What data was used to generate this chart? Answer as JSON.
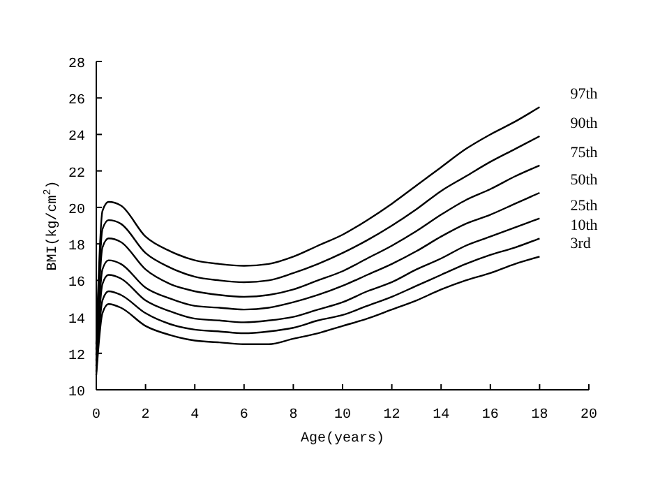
{
  "chart_data": {
    "type": "line",
    "xlabel": "Age(years)",
    "ylabel": "BMI(kg/cm$^{2}$)",
    "x": [
      0,
      0.25,
      0.5,
      1,
      2,
      3,
      4,
      5,
      6,
      7,
      8,
      9,
      10,
      11,
      12,
      13,
      14,
      15,
      16,
      17,
      18
    ],
    "xlim": [
      0,
      20
    ],
    "xticks": [
      0,
      2,
      4,
      6,
      8,
      10,
      12,
      14,
      16,
      18,
      20
    ],
    "ylim": [
      10,
      28
    ],
    "yticks": [
      10,
      12,
      14,
      16,
      18,
      20,
      22,
      24,
      26,
      28
    ],
    "grid": false,
    "marker": "none",
    "line_style": "solid",
    "series": [
      {
        "name": "97th",
        "color": "#000000",
        "values": [
          12.5,
          19.8,
          20.3,
          20.1,
          18.4,
          17.6,
          17.1,
          16.9,
          16.8,
          16.9,
          17.3,
          17.9,
          18.5,
          19.3,
          20.2,
          21.2,
          22.2,
          23.2,
          24.0,
          24.7,
          25.5
        ]
      },
      {
        "name": "90th",
        "color": "#000000",
        "values": [
          12.2,
          18.8,
          19.3,
          19.1,
          17.5,
          16.7,
          16.2,
          16.0,
          15.9,
          16.0,
          16.4,
          16.9,
          17.5,
          18.2,
          19.0,
          19.9,
          20.9,
          21.7,
          22.5,
          23.2,
          23.9
        ]
      },
      {
        "name": "75th",
        "color": "#000000",
        "values": [
          11.9,
          17.8,
          18.3,
          18.1,
          16.6,
          15.8,
          15.4,
          15.2,
          15.1,
          15.2,
          15.5,
          16.0,
          16.5,
          17.2,
          17.9,
          18.7,
          19.6,
          20.4,
          21.0,
          21.7,
          22.3
        ]
      },
      {
        "name": "50th",
        "color": "#000000",
        "values": [
          11.6,
          16.6,
          17.1,
          16.9,
          15.6,
          15.0,
          14.6,
          14.5,
          14.4,
          14.5,
          14.8,
          15.2,
          15.7,
          16.3,
          16.9,
          17.6,
          18.4,
          19.1,
          19.6,
          20.2,
          20.8
        ]
      },
      {
        "name": "25th",
        "color": "#000000",
        "values": [
          11.3,
          15.8,
          16.3,
          16.1,
          14.9,
          14.3,
          13.9,
          13.8,
          13.7,
          13.8,
          14.0,
          14.4,
          14.8,
          15.4,
          15.9,
          16.6,
          17.2,
          17.9,
          18.4,
          18.9,
          19.4
        ]
      },
      {
        "name": "10th",
        "color": "#000000",
        "values": [
          11.0,
          14.9,
          15.4,
          15.2,
          14.2,
          13.6,
          13.3,
          13.2,
          13.1,
          13.2,
          13.4,
          13.8,
          14.1,
          14.6,
          15.1,
          15.7,
          16.3,
          16.9,
          17.4,
          17.8,
          18.3
        ]
      },
      {
        "name": "3rd",
        "color": "#000000",
        "values": [
          10.8,
          14.2,
          14.7,
          14.5,
          13.5,
          13.0,
          12.7,
          12.6,
          12.5,
          12.5,
          12.8,
          13.1,
          13.5,
          13.9,
          14.4,
          14.9,
          15.5,
          16.0,
          16.4,
          16.9,
          17.3
        ]
      }
    ]
  }
}
